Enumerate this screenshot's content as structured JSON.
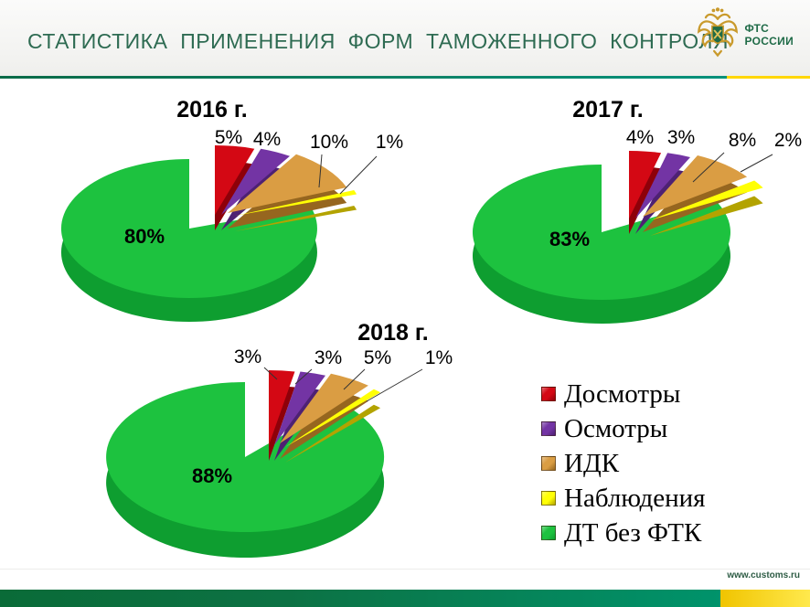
{
  "slide": {
    "header": {
      "title": "СТАТИСТИКА  ПРИМЕНЕНИЯ  ФОРМ  ТАМОЖЕННОГО  КОНТРОЛЯ",
      "logo": {
        "line1": "ФТС",
        "line2": "РОССИИ"
      }
    },
    "footer": {
      "url": "www.customs.ru"
    }
  },
  "legend": {
    "items": [
      {
        "label": "Досмотры",
        "color": "#d40814",
        "side": "#8e0009"
      },
      {
        "label": "Осмотры",
        "color": "#7334a4",
        "side": "#4e2173"
      },
      {
        "label": "ИДК",
        "color": "#da9d43",
        "side": "#96661f"
      },
      {
        "label": "Наблюдения",
        "color": "#ffff05",
        "side": "#b3a300"
      },
      {
        "label": "ДТ без ФТК",
        "color": "#1dc23f",
        "side": "#0e9e30"
      }
    ]
  },
  "chart_data": [
    {
      "type": "pie",
      "title": "2016 г.",
      "unit": "%",
      "categories": [
        "Досмотры",
        "Осмотры",
        "ИДК",
        "Наблюдения",
        "ДТ без ФТК"
      ],
      "values": [
        5,
        4,
        10,
        1,
        80
      ],
      "labels": [
        "5%",
        "4%",
        "10%",
        "1%",
        "80%"
      ],
      "legend_position": "shared-bottom-right",
      "style": "3d-exploded"
    },
    {
      "type": "pie",
      "title": "2017 г.",
      "unit": "%",
      "categories": [
        "Досмотры",
        "Осмотры",
        "ИДК",
        "Наблюдения",
        "ДТ без ФТК"
      ],
      "values": [
        4,
        3,
        8,
        2,
        83
      ],
      "labels": [
        "4%",
        "3%",
        "8%",
        "2%",
        "83%"
      ],
      "legend_position": "shared-bottom-right",
      "style": "3d-exploded"
    },
    {
      "type": "pie",
      "title": "2018 г.",
      "unit": "%",
      "categories": [
        "Досмотры",
        "Осмотры",
        "ИДК",
        "Наблюдения",
        "ДТ без ФТК"
      ],
      "values": [
        3,
        3,
        5,
        1,
        88
      ],
      "labels": [
        "3%",
        "3%",
        "5%",
        "1%",
        "88%"
      ],
      "legend_position": "shared-bottom-right",
      "style": "3d-exploded"
    }
  ],
  "colors": {
    "title_green": "#2e6b52",
    "header_line_green": "#0e8468",
    "header_line_yellow": "#ffd700",
    "bar_green_left": "#0a6b38",
    "bar_green_right": "#00936b",
    "bar_yellow": "#f7c800",
    "url_text": "#2f5d46",
    "logo_green": "#1f6b47",
    "logo_gold": "#c99a2c"
  }
}
